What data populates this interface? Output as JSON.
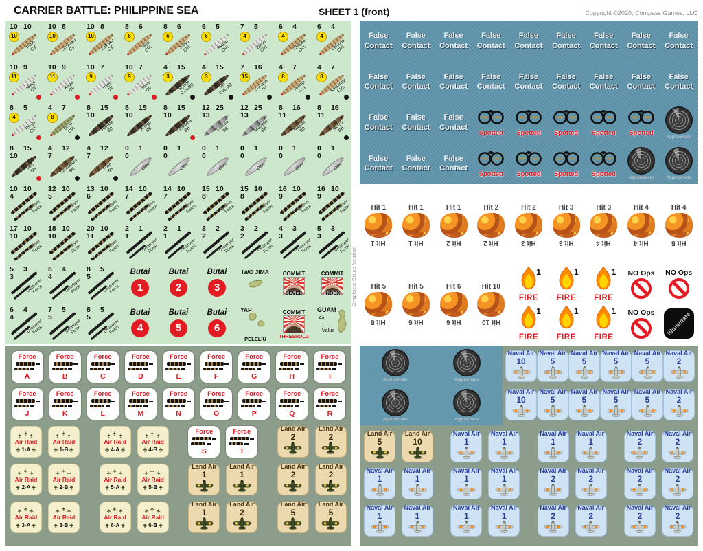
{
  "header": {
    "title": "CARRIER BATTLE: PHILIPPINE SEA",
    "sheet": "SHEET 1 (front)",
    "copyright": "Copyright ©2020, Compass Games, LLC"
  },
  "credit": "Graphics: Bruce Yearian",
  "colors": {
    "accent_red": "#e31b23",
    "panel_green": "#cde7cc",
    "panel_sage": "#8d9d8b",
    "panel_blue": "#6095ac",
    "counter_cream": "#f5efcd",
    "counter_tan": "#ecd9ae",
    "counter_naval_blue": "#cfe3f5",
    "badge_yellow": "#ffdf00"
  },
  "labels": {
    "false_contact": [
      "False",
      "Contact"
    ],
    "spotted": "Spotted",
    "approximate": "Approximate",
    "fire": "FIRE",
    "fire_value": "1",
    "no_ops": "NO Ops",
    "illuminate": "Illuminate",
    "butai": "Butai",
    "force": "Force",
    "air_raid": "Air Raid",
    "land_air": "Land Air",
    "naval_air": "Naval Air",
    "cruiser": [
      "Cruiser",
      "Force"
    ],
    "destroyer": [
      "Destroyer",
      "Force"
    ],
    "islands": {
      "iwo": "IWO JIMA",
      "yap": "YAP",
      "peleliu": "PELELIU",
      "guam": "GUAM",
      "guam_sub": [
        "Air",
        "Value"
      ]
    },
    "commit_top": "COMMIT",
    "commit_level": "LEVEL",
    "commit_index": "INDEX",
    "commit_threshold": "THRESHOLD"
  },
  "green_rows": [
    [
      {
        "k": "s",
        "n1": "10",
        "n2": "10",
        "b": "10",
        "name": "Taiho",
        "cls": "CV",
        "hull": "tan"
      },
      {
        "k": "s",
        "n1": "10",
        "n2": "8",
        "b": "10",
        "name": "Shokaku",
        "cls": "CV",
        "hull": "tan"
      },
      {
        "k": "s",
        "n1": "10",
        "n2": "8",
        "b": "10",
        "name": "Zuikaku",
        "cls": "CV",
        "hull": "tan"
      },
      {
        "k": "s",
        "n1": "8",
        "n2": "6",
        "b": "6",
        "name": "Hiyo",
        "cls": "CVL",
        "hull": "tan"
      },
      {
        "k": "s",
        "n1": "8",
        "n2": "6",
        "b": "6",
        "name": "Junyo",
        "cls": "CVL",
        "hull": "tan"
      },
      {
        "k": "s",
        "n1": "6",
        "n2": "5",
        "b": "6",
        "name": "Ryuho",
        "cls": "CVL",
        "hull": "light"
      },
      {
        "k": "s",
        "n1": "7",
        "n2": "5",
        "b": "4",
        "name": "Zuiho",
        "cls": "CVL",
        "hull": "light"
      },
      {
        "k": "s",
        "n1": "6",
        "n2": "4",
        "b": "4",
        "name": "Chitose",
        "cls": "CVL",
        "hull": "tan"
      },
      {
        "k": "s",
        "n1": "6",
        "n2": "4",
        "b": "4",
        "name": "Chiyoda",
        "cls": "CVL",
        "hull": "tan"
      }
    ],
    [
      {
        "k": "s",
        "n1": "10",
        "n2": "9",
        "b": "11",
        "name": "Akagi",
        "cls": "CV",
        "hull": "light",
        "dot": "red"
      },
      {
        "k": "s",
        "n1": "10",
        "n2": "9",
        "b": "11",
        "name": "Kaga",
        "cls": "CV",
        "hull": "light",
        "dot": "red"
      },
      {
        "k": "s",
        "n1": "10",
        "n2": "7",
        "b": "9",
        "name": "Hiryu",
        "cls": "CV",
        "hull": "light",
        "dot": "red"
      },
      {
        "k": "s",
        "n1": "10",
        "n2": "7",
        "b": "9",
        "name": "Soryu",
        "cls": "CV",
        "hull": "light",
        "dot": "red"
      },
      {
        "k": "s",
        "n1": "4",
        "n2": "15",
        "b": "3",
        "name": "Hyuga",
        "cls": "CVL-BB",
        "hull": "camo",
        "dot": "black"
      },
      {
        "k": "s",
        "n1": "4",
        "n2": "15",
        "b": "3",
        "name": "Ise",
        "cls": "CVL-BB",
        "hull": "camo",
        "dot": "black"
      },
      {
        "k": "s",
        "n1": "7",
        "n2": "16",
        "b": "15",
        "name": "Shinano",
        "cls": "CV",
        "hull": "tan",
        "dot": "black"
      },
      {
        "k": "s",
        "n1": "4",
        "n2": "7",
        "b": "8",
        "name": "Amagi",
        "cls": "CVL",
        "hull": "tan",
        "dot": "black"
      },
      {
        "k": "s",
        "n1": "4",
        "n2": "7",
        "b": "8",
        "name": "Katsuragi",
        "cls": "CVL",
        "hull": "tan",
        "dot": "black"
      }
    ],
    [
      {
        "k": "s",
        "n1": "8",
        "n2": "5",
        "b": "4",
        "name": "Ryujo",
        "cls": "CVL",
        "hull": "light",
        "dot": "red"
      },
      {
        "k": "s",
        "n1": "4",
        "n2": "7",
        "b": "8",
        "name": "Unryu",
        "cls": "CVL",
        "hull": "olive",
        "dot": "black"
      },
      {
        "k": "s",
        "n1": "8",
        "n2": "15",
        "n3": "10",
        "name": "Haruna",
        "cls": "BB",
        "hull": "camo"
      },
      {
        "k": "s",
        "n1": "8",
        "n2": "15",
        "n3": "10",
        "name": "Kongo",
        "cls": "BB",
        "hull": "camo"
      },
      {
        "k": "s",
        "n1": "8",
        "n2": "15",
        "n3": "10",
        "name": "Kirishima",
        "cls": "BB",
        "hull": "camo",
        "dot": "red"
      },
      {
        "k": "s",
        "n1": "12",
        "n2": "25",
        "n3": "13",
        "name": "Yamato",
        "cls": "BB",
        "hull": "gray"
      },
      {
        "k": "s",
        "n1": "12",
        "n2": "25",
        "n3": "13",
        "name": "Musashi",
        "cls": "BB",
        "hull": "gray"
      },
      {
        "k": "s",
        "n1": "8",
        "n2": "16",
        "n3": "11",
        "name": "Nagato",
        "cls": "BB",
        "hull": "brown"
      },
      {
        "k": "s",
        "n1": "8",
        "n2": "16",
        "n3": "11",
        "name": "Mutsu",
        "cls": "BB",
        "hull": "brown",
        "dot": "black"
      }
    ],
    [
      {
        "k": "s",
        "n1": "8",
        "n2": "15",
        "n3": "10",
        "name": "Hiei",
        "cls": "BB",
        "hull": "camo",
        "dot": "red"
      },
      {
        "k": "s",
        "n1": "4",
        "n2": "12",
        "n3": "7",
        "name": "Yamashiro",
        "cls": "BB",
        "hull": "brown",
        "dot": "black"
      },
      {
        "k": "s",
        "n1": "4",
        "n2": "12",
        "n3": "7",
        "name": "Fuso",
        "cls": "BB",
        "hull": "brown",
        "dot": "black"
      },
      {
        "k": "s",
        "n1": "0",
        "n2": "1",
        "n3": "0",
        "name": "",
        "cls": "Oiler",
        "hull": "oiler"
      },
      {
        "k": "s",
        "n1": "0",
        "n2": "1",
        "n3": "0",
        "name": "",
        "cls": "Oiler",
        "hull": "oiler"
      },
      {
        "k": "s",
        "n1": "0",
        "n2": "1",
        "n3": "0",
        "name": "",
        "cls": "Oiler",
        "hull": "oiler"
      },
      {
        "k": "s",
        "n1": "0",
        "n2": "1",
        "n3": "0",
        "name": "",
        "cls": "Oiler",
        "hull": "oiler"
      },
      {
        "k": "s",
        "n1": "0",
        "n2": "1",
        "n3": "0",
        "name": "",
        "cls": "Oiler",
        "hull": "oiler"
      },
      {
        "k": "s",
        "n1": "0",
        "n2": "1",
        "n3": "0",
        "name": "",
        "cls": "Oiler",
        "hull": "oiler"
      }
    ],
    [
      {
        "k": "f",
        "f": "cruiser",
        "n1": "10",
        "n2": "10",
        "n3": "4"
      },
      {
        "k": "f",
        "f": "cruiser",
        "n1": "12",
        "n2": "10",
        "n3": "5"
      },
      {
        "k": "f",
        "f": "cruiser",
        "n1": "13",
        "n2": "10",
        "n3": "6"
      },
      {
        "k": "f",
        "f": "cruiser",
        "n1": "14",
        "n2": "10",
        "n3": "7"
      },
      {
        "k": "f",
        "f": "cruiser",
        "n1": "14",
        "n2": "10",
        "n3": "7"
      },
      {
        "k": "f",
        "f": "cruiser",
        "n1": "15",
        "n2": "10",
        "n3": "8"
      },
      {
        "k": "f",
        "f": "cruiser",
        "n1": "15",
        "n2": "10",
        "n3": "8"
      },
      {
        "k": "f",
        "f": "cruiser",
        "n1": "16",
        "n2": "10",
        "n3": "9"
      },
      {
        "k": "f",
        "f": "cruiser",
        "n1": "16",
        "n2": "10",
        "n3": "9"
      }
    ],
    [
      {
        "k": "f",
        "f": "cruiser",
        "n1": "17",
        "n2": "10",
        "n3": "10"
      },
      {
        "k": "f",
        "f": "cruiser",
        "n1": "18",
        "n2": "10",
        "n3": "10"
      },
      {
        "k": "f",
        "f": "cruiser",
        "n1": "20",
        "n2": "10",
        "n3": "11"
      },
      {
        "k": "f",
        "f": "destroyer",
        "n1": "2",
        "n2": "1",
        "n3": "1"
      },
      {
        "k": "f",
        "f": "destroyer",
        "n1": "2",
        "n2": "1",
        "n3": "1"
      },
      {
        "k": "f",
        "f": "destroyer",
        "n1": "3",
        "n2": "2",
        "n3": "2"
      },
      {
        "k": "f",
        "f": "destroyer",
        "n1": "3",
        "n2": "2",
        "n3": "2"
      },
      {
        "k": "f",
        "f": "destroyer",
        "n1": "4",
        "n2": "3",
        "n3": "3"
      },
      {
        "k": "f",
        "f": "destroyer",
        "n1": "5",
        "n2": "3",
        "n3": "3"
      }
    ],
    [
      {
        "k": "f",
        "f": "destroyer",
        "n1": "5",
        "n2": "3",
        "n3": "3"
      },
      {
        "k": "f",
        "f": "destroyer",
        "n1": "6",
        "n2": "4",
        "n3": "4"
      },
      {
        "k": "f",
        "f": "destroyer",
        "n1": "8",
        "n2": "5",
        "n3": "5"
      },
      {
        "k": "b",
        "num": "1"
      },
      {
        "k": "b",
        "num": "2"
      },
      {
        "k": "b",
        "num": "3"
      },
      {
        "k": "i",
        "v": "iwo"
      },
      {
        "k": "c",
        "bottom": "commit_level"
      },
      {
        "k": "c",
        "bottom": "commit_index"
      }
    ],
    [
      {
        "k": "f",
        "f": "destroyer",
        "n1": "6",
        "n2": "4",
        "n3": "4"
      },
      {
        "k": "f",
        "f": "destroyer",
        "n1": "7",
        "n2": "5",
        "n3": "5"
      },
      {
        "k": "f",
        "f": "destroyer",
        "n1": "8",
        "n2": "5",
        "n3": "5"
      },
      {
        "k": "b",
        "num": "4"
      },
      {
        "k": "b",
        "num": "5"
      },
      {
        "k": "b",
        "num": "6"
      },
      {
        "k": "i",
        "v": "yap"
      },
      {
        "k": "c",
        "bottom": "commit_threshold",
        "red": true
      },
      {
        "k": "i",
        "v": "guam"
      }
    ]
  ],
  "force_letters": [
    "A",
    "B",
    "C",
    "D",
    "E",
    "F",
    "G",
    "H",
    "I",
    "J",
    "K",
    "L",
    "M",
    "N",
    "O",
    "P",
    "Q",
    "R"
  ],
  "air_rows": [
    [
      [
        {
          "t": "ar",
          "v": "1-A"
        },
        {
          "t": "ar",
          "v": "1-B"
        }
      ],
      [
        {
          "t": "ar",
          "v": "4-A"
        },
        {
          "t": "ar",
          "v": "4-B"
        }
      ],
      [
        {
          "t": "fo",
          "v": "S"
        },
        {
          "t": "fo",
          "v": "T"
        }
      ],
      [
        {
          "t": "la",
          "v": "2"
        },
        {
          "t": "la",
          "v": "2"
        }
      ]
    ],
    [
      [
        {
          "t": "ar",
          "v": "2-A"
        },
        {
          "t": "ar",
          "v": "2-B"
        }
      ],
      [
        {
          "t": "ar",
          "v": "5-A"
        },
        {
          "t": "ar",
          "v": "5-B"
        }
      ],
      [
        {
          "t": "la",
          "v": "1"
        },
        {
          "t": "la",
          "v": "1"
        }
      ],
      [
        {
          "t": "la",
          "v": "2"
        },
        {
          "t": "la",
          "v": "2"
        }
      ]
    ],
    [
      [
        {
          "t": "ar",
          "v": "3-A"
        },
        {
          "t": "ar",
          "v": "3-B"
        }
      ],
      [
        {
          "t": "ar",
          "v": "6-A"
        },
        {
          "t": "ar",
          "v": "6-B"
        }
      ],
      [
        {
          "t": "la",
          "v": "1"
        },
        {
          "t": "la",
          "v": "2"
        }
      ],
      [
        {
          "t": "la",
          "v": "5"
        },
        {
          "t": "la",
          "v": "5"
        }
      ]
    ]
  ],
  "blue_rows": [
    [
      "fc",
      "fc",
      "fc",
      "fc",
      "fc",
      "fc",
      "fc",
      "fc",
      "fc"
    ],
    [
      "fc",
      "fc",
      "fc",
      "fc",
      "fc",
      "fc",
      "fc",
      "fc",
      "fc"
    ],
    [
      "fc",
      "fc",
      "fc",
      "sp",
      "sp",
      "sp",
      "sp",
      "sp",
      "ap"
    ],
    [
      "fc",
      "fc",
      "fc",
      "sp",
      "sp",
      "sp",
      "sp",
      "ap",
      "ap"
    ]
  ],
  "hit_row1": [
    [
      "Hit 1",
      "Hit 1"
    ],
    [
      "Hit 1",
      "Hit 1"
    ],
    [
      "Hit 1",
      "Hit 2"
    ],
    [
      "Hit 2",
      "Hit 2"
    ],
    [
      "Hit 2",
      "Hit 3"
    ],
    [
      "Hit 3",
      "Hit 3"
    ],
    [
      "Hit 3",
      "Hit 4"
    ],
    [
      "Hit 4",
      "Hit 4"
    ],
    [
      "Hit 4",
      "Hit 5"
    ]
  ],
  "hit_row2": [
    [
      "Hit 5",
      "Hit 5"
    ],
    [
      "Hit 5",
      "Hit 6"
    ],
    [
      "Hit 6",
      "Hit 6"
    ],
    [
      "Hit 10",
      "Hit 10"
    ]
  ],
  "fire_columns": 3,
  "approximate_grid_count": 4,
  "naval_top_rows": [
    [
      "10",
      "5",
      "5",
      "5",
      "5",
      "2"
    ],
    [
      "10",
      "5",
      "5",
      "5",
      "5",
      "2"
    ]
  ],
  "bottom_rows": [
    [
      [
        {
          "t": "la",
          "v": "5"
        },
        {
          "t": "la",
          "v": "10"
        }
      ],
      [
        {
          "t": "na",
          "v": "1"
        },
        {
          "t": "na",
          "v": "1"
        }
      ],
      [
        {
          "t": "na",
          "v": "1"
        },
        {
          "t": "na",
          "v": "1"
        }
      ],
      [
        {
          "t": "na",
          "v": "2"
        },
        {
          "t": "na",
          "v": "2"
        }
      ]
    ],
    [
      [
        {
          "t": "na",
          "v": "1"
        },
        {
          "t": "na",
          "v": "1"
        }
      ],
      [
        {
          "t": "na",
          "v": "1"
        },
        {
          "t": "na",
          "v": "1"
        }
      ],
      [
        {
          "t": "na",
          "v": "2"
        },
        {
          "t": "na",
          "v": "2"
        }
      ],
      [
        {
          "t": "na",
          "v": "2"
        },
        {
          "t": "na",
          "v": "2"
        }
      ]
    ],
    [
      [
        {
          "t": "na",
          "v": "1"
        },
        {
          "t": "na",
          "v": "1"
        }
      ],
      [
        {
          "t": "na",
          "v": "1"
        },
        {
          "t": "na",
          "v": "1"
        }
      ],
      [
        {
          "t": "na",
          "v": "2"
        },
        {
          "t": "na",
          "v": "2"
        }
      ],
      [
        {
          "t": "na",
          "v": "2"
        },
        {
          "t": "na",
          "v": "2"
        }
      ]
    ]
  ]
}
